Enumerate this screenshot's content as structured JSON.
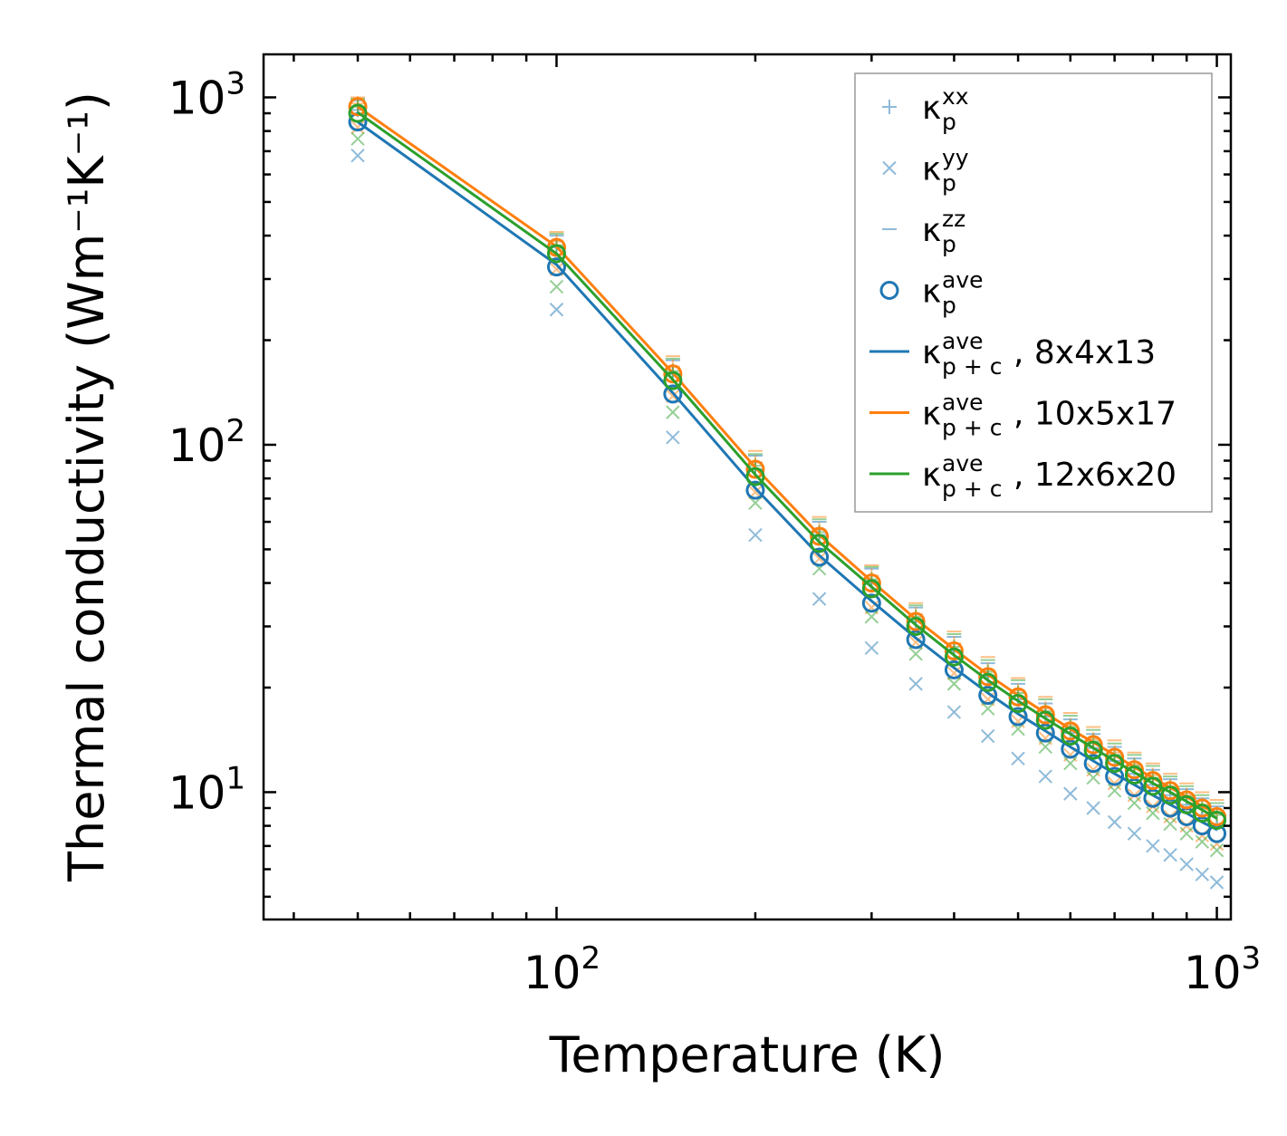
{
  "chart_data": {
    "type": "scatter",
    "xlabel": "Temperature (K)",
    "ylabel": "Thermal conductivity (Wm⁻¹K⁻¹)",
    "xscale": "log",
    "yscale": "log",
    "xlim": [
      36,
      1050
    ],
    "ylim": [
      4.3,
      1330
    ],
    "x_ticks": [
      {
        "value": 100,
        "base": "10",
        "exp": "2"
      },
      {
        "value": 1000,
        "base": "10",
        "exp": "3"
      }
    ],
    "y_ticks": [
      {
        "value": 10,
        "base": "10",
        "exp": "1"
      },
      {
        "value": 100,
        "base": "10",
        "exp": "2"
      },
      {
        "value": 1000,
        "base": "10",
        "exp": "3"
      }
    ],
    "legend_position": "upper-right",
    "legend": [
      {
        "marker": "plus",
        "color": "#1f77b4",
        "alpha": 0.5,
        "label": "κ",
        "sub": "p",
        "sup": "xx",
        "suffix": ""
      },
      {
        "marker": "cross",
        "color": "#1f77b4",
        "alpha": 0.5,
        "label": "κ",
        "sub": "p",
        "sup": "yy",
        "suffix": ""
      },
      {
        "marker": "dash",
        "color": "#1f77b4",
        "alpha": 0.5,
        "label": "κ",
        "sub": "p",
        "sup": "zz",
        "suffix": ""
      },
      {
        "marker": "circle",
        "color": "#1f77b4",
        "alpha": 1,
        "label": "κ",
        "sub": "p",
        "sup": "ave",
        "suffix": ""
      },
      {
        "marker": "line",
        "color": "#1f77b4",
        "alpha": 1,
        "label": "κ",
        "sub": "p + c",
        "sup": "ave",
        "suffix": ", 8x4x13"
      },
      {
        "marker": "line",
        "color": "#ff7f0e",
        "alpha": 1,
        "label": "κ",
        "sub": "p + c",
        "sup": "ave",
        "suffix": ", 10x5x17"
      },
      {
        "marker": "line",
        "color": "#2ca02c",
        "alpha": 1,
        "label": "κ",
        "sub": "p + c",
        "sup": "ave",
        "suffix": ", 12x6x20"
      }
    ],
    "x": [
      50,
      100,
      150,
      200,
      250,
      300,
      350,
      400,
      450,
      500,
      550,
      600,
      650,
      700,
      750,
      800,
      850,
      900,
      950,
      1000
    ],
    "series": [
      {
        "name": "8x4x13",
        "color": "#1f77b4",
        "kappa_xx": [
          920,
          370,
          160,
          85,
          55,
          40,
          31,
          25.5,
          21.5,
          18.5,
          16.5,
          14.8,
          13.4,
          12.3,
          11.3,
          10.5,
          9.8,
          9.2,
          8.6,
          8.1
        ],
        "kappa_yy": [
          680,
          245,
          105,
          55,
          36,
          26,
          20.5,
          17,
          14.5,
          12.5,
          11.1,
          9.9,
          9.0,
          8.2,
          7.6,
          7.0,
          6.6,
          6.2,
          5.8,
          5.5
        ],
        "kappa_zz": [
          980,
          400,
          175,
          93,
          60,
          44,
          34,
          28,
          23.5,
          20.5,
          18,
          16.2,
          14.7,
          13.5,
          12.5,
          11.6,
          10.9,
          10.2,
          9.6,
          9.1
        ],
        "kappa_ave": [
          850,
          325,
          140,
          74,
          47.5,
          35,
          27.5,
          22.5,
          19,
          16.5,
          14.8,
          13.3,
          12.1,
          11.1,
          10.3,
          9.6,
          9.0,
          8.5,
          8.0,
          7.6
        ],
        "kappa_pc": [
          850,
          330,
          141,
          75,
          48,
          35.5,
          27.8,
          22.8,
          19.3,
          16.8,
          15,
          13.5,
          12.3,
          11.3,
          10.5,
          9.8,
          9.2,
          8.7,
          8.2,
          7.8
        ]
      },
      {
        "name": "10x5x17",
        "color": "#ff7f0e",
        "kappa_xx": [
          960,
          385,
          168,
          89,
          57,
          42,
          32.5,
          26.8,
          22.5,
          19.6,
          17.4,
          15.6,
          14.2,
          13.0,
          12.0,
          11.2,
          10.4,
          9.8,
          9.2,
          8.7
        ],
        "kappa_yy": [
          820,
          320,
          138,
          73,
          47,
          34,
          27,
          22,
          18.5,
          16,
          14.3,
          12.8,
          11.6,
          10.6,
          9.8,
          9.1,
          8.5,
          8.0,
          7.5,
          7.1
        ],
        "kappa_zz": [
          1000,
          410,
          180,
          96,
          62,
          45,
          35,
          29,
          24.5,
          21.3,
          18.8,
          16.9,
          15.4,
          14.1,
          13.0,
          12.1,
          11.3,
          10.6,
          10.0,
          9.5
        ],
        "kappa_ave": [
          940,
          370,
          160,
          85,
          54.5,
          40,
          31,
          25.5,
          21.5,
          18.8,
          16.7,
          15,
          13.7,
          12.6,
          11.6,
          10.8,
          10.1,
          9.5,
          9.0,
          8.5
        ],
        "kappa_pc": [
          940,
          372,
          161,
          86,
          55,
          40.5,
          31.5,
          25.8,
          21.8,
          19,
          16.9,
          15.2,
          13.9,
          12.8,
          11.8,
          11.0,
          10.3,
          9.7,
          9.1,
          8.7
        ]
      },
      {
        "name": "12x6x20",
        "color": "#2ca02c",
        "kappa_xx": [
          940,
          375,
          163,
          87,
          56,
          41,
          32,
          26.2,
          22.2,
          19.3,
          17.1,
          15.4,
          14.0,
          12.8,
          11.9,
          11.0,
          10.3,
          9.7,
          9.1,
          8.6
        ],
        "kappa_yy": [
          760,
          285,
          124,
          68,
          44,
          32,
          25,
          20.5,
          17.4,
          15.2,
          13.5,
          12.1,
          11.0,
          10.1,
          9.3,
          8.7,
          8.1,
          7.6,
          7.2,
          6.8
        ],
        "kappa_zz": [
          990,
          405,
          177,
          94,
          61,
          44.5,
          34.5,
          28.5,
          24,
          21,
          18.5,
          16.6,
          15.1,
          13.8,
          12.8,
          11.9,
          11.1,
          10.4,
          9.8,
          9.3
        ],
        "kappa_ave": [
          900,
          355,
          153,
          81,
          52,
          38.5,
          30,
          24.5,
          20.7,
          18,
          16.1,
          14.5,
          13.2,
          12.1,
          11.2,
          10.4,
          9.8,
          9.2,
          8.7,
          8.3
        ],
        "kappa_pc": [
          905,
          355,
          154,
          82,
          52.5,
          39,
          30.3,
          24.8,
          21,
          18.3,
          16.3,
          14.7,
          13.4,
          12.3,
          11.4,
          10.6,
          10.0,
          9.4,
          8.9,
          8.4
        ]
      }
    ]
  }
}
